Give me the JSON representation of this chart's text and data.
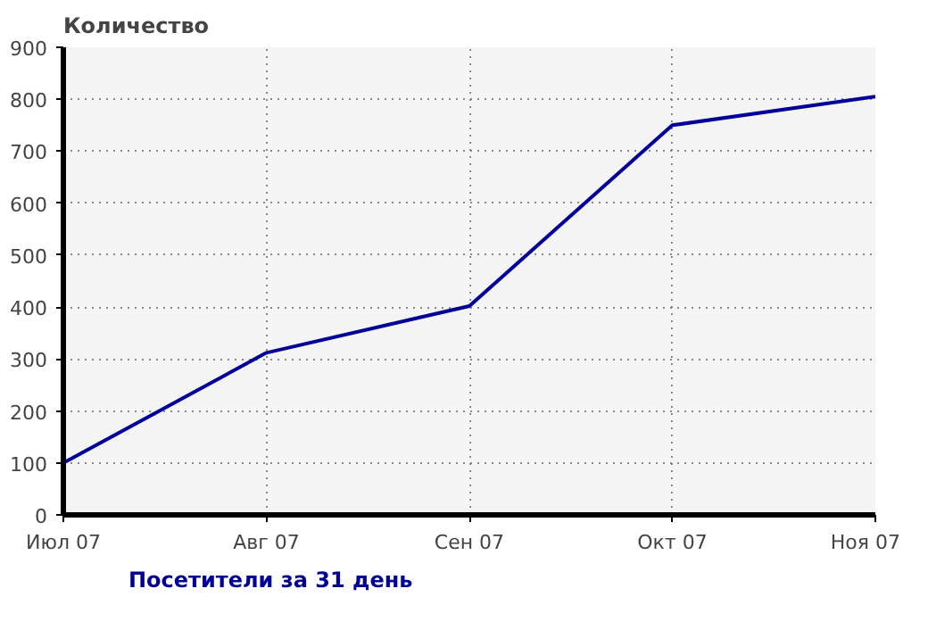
{
  "chart_data": {
    "type": "line",
    "ylabel": "Количество",
    "categories": [
      "Июл 07",
      "Авг 07",
      "Сен 07",
      "Окт 07",
      "Ноя 07"
    ],
    "series": [
      {
        "name": "Посетители за 31 день",
        "color": "#000099",
        "values": [
          100,
          312,
          402,
          750,
          805
        ]
      }
    ],
    "ylim": [
      0,
      900
    ],
    "yticks": [
      0,
      100,
      200,
      300,
      400,
      500,
      600,
      700,
      800,
      900
    ],
    "grid": true,
    "legend": "bottom left",
    "marker": "none",
    "line_style": "solid"
  }
}
